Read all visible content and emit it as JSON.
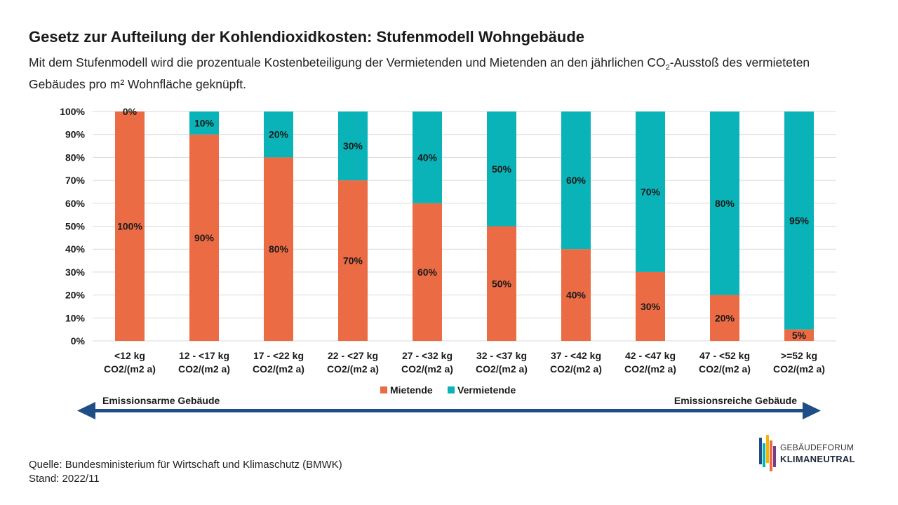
{
  "header": {
    "title": "Gesetz zur Aufteilung der Kohlendioxidkosten: Stufenmodell Wohngebäude",
    "subtitle_pre": "Mit dem Stufenmodell wird die prozentuale Kostenbeteiligung der Vermietenden und Mietenden an den jährlichen CO",
    "subtitle_sub": "2",
    "subtitle_post": "-Ausstoß des vermieteten Gebäudes pro m² Wohnfläche geknüpft."
  },
  "chart_data": {
    "type": "bar",
    "stacked": true,
    "categories": [
      [
        "<12 kg",
        "CO2/(m2 a)"
      ],
      [
        "12 - <17 kg",
        "CO2/(m2 a)"
      ],
      [
        "17 - <22 kg",
        "CO2/(m2 a)"
      ],
      [
        "22 - <27 kg",
        "CO2/(m2 a)"
      ],
      [
        "27 - <32 kg",
        "CO2/(m2 a)"
      ],
      [
        "32 - <37 kg",
        "CO2/(m2 a)"
      ],
      [
        "37 - <42 kg",
        "CO2/(m2 a)"
      ],
      [
        "42 - <47 kg",
        "CO2/(m2 a)"
      ],
      [
        "47 - <52 kg",
        "CO2/(m2 a)"
      ],
      [
        ">=52 kg",
        "CO2/(m2 a)"
      ]
    ],
    "series": [
      {
        "name": "Mietende",
        "color": "#eb6b45",
        "values": [
          100,
          90,
          80,
          70,
          60,
          50,
          40,
          30,
          20,
          5
        ]
      },
      {
        "name": "Vermietende",
        "color": "#0ab3b8",
        "values": [
          0,
          10,
          20,
          30,
          40,
          50,
          60,
          70,
          80,
          95
        ]
      }
    ],
    "ylim": [
      0,
      100
    ],
    "yticks": [
      "0%",
      "10%",
      "20%",
      "30%",
      "40%",
      "50%",
      "60%",
      "70%",
      "80%",
      "90%",
      "100%"
    ],
    "grid": true,
    "legend": "bottom-center",
    "arrow": {
      "left_label": "Emissionsarme Gebäude",
      "right_label": "Emissionsreiche Gebäude",
      "color": "#1f4e86"
    }
  },
  "footer": {
    "source": "Quelle: Bundesministerium für Wirtschaft und Klimaschutz (BMWK)",
    "date": "Stand: 2022/11"
  },
  "logo": {
    "line1": "GEBÄUDEFORUM",
    "line2": "KLIMANEUTRAL",
    "icon": "gebaeudeforum-bars-logo"
  }
}
